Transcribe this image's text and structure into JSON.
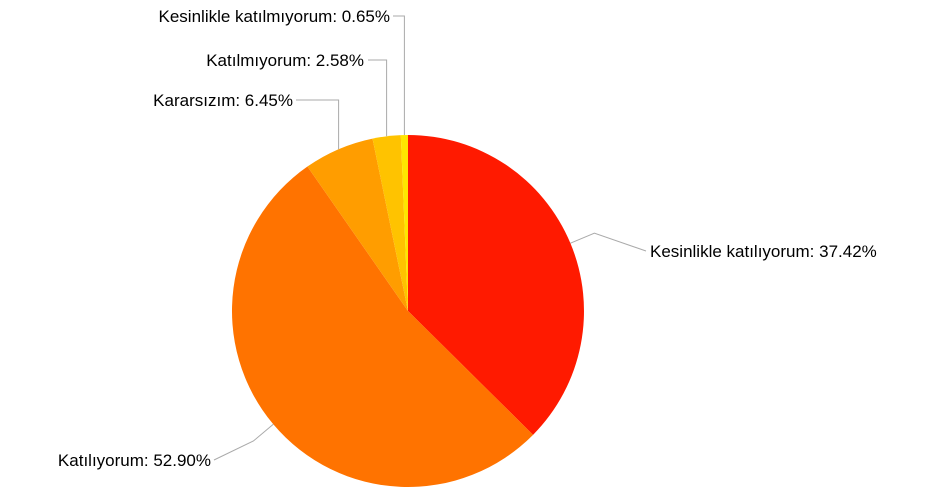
{
  "chart_data": {
    "type": "pie",
    "title": "",
    "slices": [
      {
        "label": "Kesinlikle katılıyorum",
        "value": 37.42,
        "text": "Kesinlikle katılıyorum: 37.42%",
        "color": "#ff1a00"
      },
      {
        "label": "Katılıyorum",
        "value": 52.9,
        "text": "Katılıyorum: 52.90%",
        "color": "#ff7300"
      },
      {
        "label": "Kararsızım",
        "value": 6.45,
        "text": "Kararsızım: 6.45%",
        "color": "#ff9d00"
      },
      {
        "label": "Katılmıyorum",
        "value": 2.58,
        "text": "Katılmıyorum: 2.58%",
        "color": "#ffc300"
      },
      {
        "label": "Kesinlikle katılmıyorum",
        "value": 0.65,
        "text": "Kesinlikle katılmıyorum: 0.65%",
        "color": "#ffe600"
      }
    ],
    "start_angle": "12 o'clock",
    "direction": "clockwise",
    "legend": "none"
  }
}
